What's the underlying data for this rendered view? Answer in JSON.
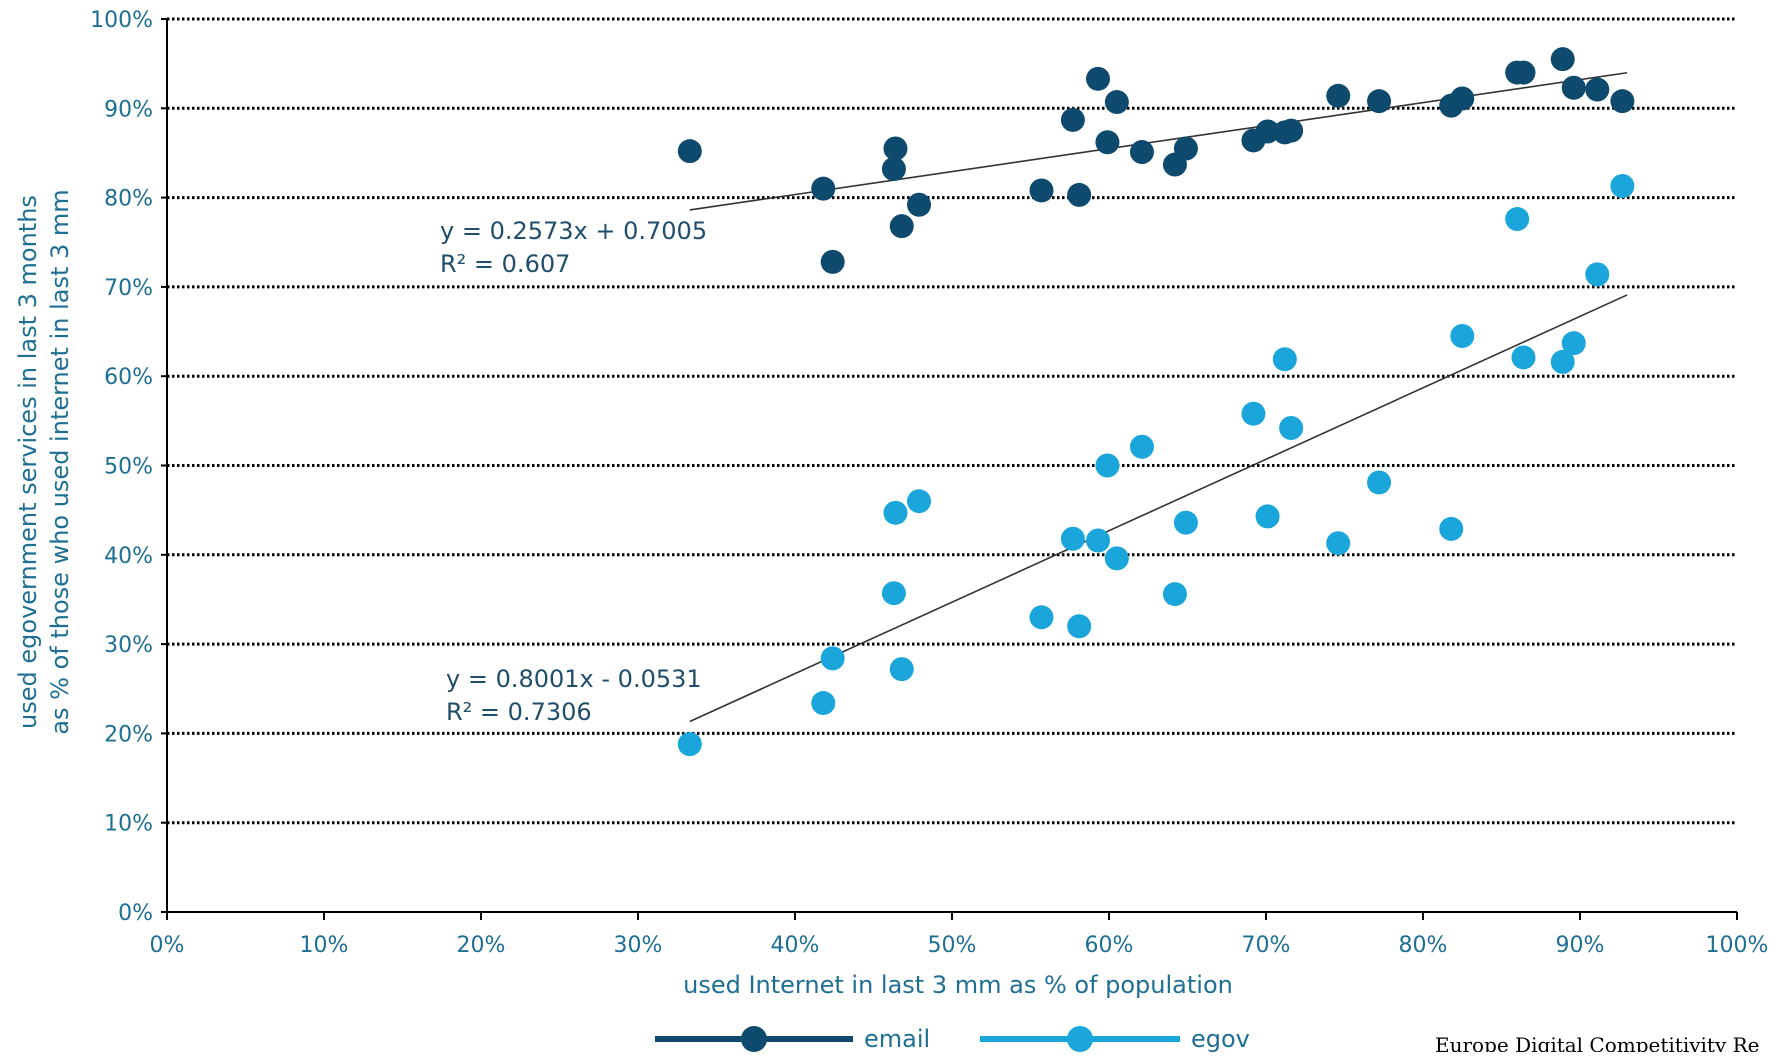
{
  "chart_data": {
    "type": "scatter",
    "xlabel": "used Internet in last 3 mm as % of population",
    "ylabel_lines": [
      "used egovernment services in last 3 months",
      "as % of those who used internet in last 3 mm"
    ],
    "xlim": [
      0,
      1
    ],
    "ylim": [
      0,
      1
    ],
    "x_ticks": [
      0,
      0.1,
      0.2,
      0.3,
      0.4,
      0.5,
      0.6,
      0.7,
      0.8,
      0.9,
      1.0
    ],
    "x_tick_labels": [
      "0%",
      "10%",
      "20%",
      "30%",
      "40%",
      "50%",
      "60%",
      "70%",
      "80%",
      "90%",
      "100%"
    ],
    "y_ticks": [
      0,
      0.1,
      0.2,
      0.3,
      0.4,
      0.5,
      0.6,
      0.7,
      0.8,
      0.9,
      1.0
    ],
    "y_tick_labels": [
      "0%",
      "10%",
      "20%",
      "30%",
      "40%",
      "50%",
      "60%",
      "70%",
      "80%",
      "90%",
      "100%"
    ],
    "grid": "horizontal dotted",
    "legend_position": "bottom",
    "series": [
      {
        "name": "email",
        "color": "#0d4a6e",
        "x": [
          0.333,
          0.418,
          0.424,
          0.463,
          0.464,
          0.468,
          0.479,
          0.557,
          0.577,
          0.581,
          0.593,
          0.599,
          0.605,
          0.621,
          0.642,
          0.649,
          0.692,
          0.701,
          0.712,
          0.716,
          0.746,
          0.772,
          0.818,
          0.825,
          0.86,
          0.864,
          0.889,
          0.896,
          0.911,
          0.927
        ],
        "y": [
          0.852,
          0.81,
          0.728,
          0.832,
          0.855,
          0.768,
          0.792,
          0.808,
          0.887,
          0.803,
          0.933,
          0.862,
          0.907,
          0.851,
          0.837,
          0.855,
          0.864,
          0.874,
          0.873,
          0.875,
          0.914,
          0.908,
          0.903,
          0.911,
          0.94,
          0.94,
          0.955,
          0.923,
          0.921,
          0.908
        ],
        "trendline": {
          "slope": 0.2573,
          "intercept": 0.7005,
          "x_range": [
            0.333,
            0.93
          ]
        },
        "equation_text": "y = 0.2573x + 0.7005",
        "r2_text": "R² = 0.607"
      },
      {
        "name": "egov",
        "color": "#1aa6db",
        "x": [
          0.333,
          0.418,
          0.424,
          0.463,
          0.464,
          0.468,
          0.479,
          0.557,
          0.577,
          0.581,
          0.593,
          0.599,
          0.605,
          0.621,
          0.642,
          0.649,
          0.692,
          0.701,
          0.712,
          0.716,
          0.746,
          0.772,
          0.818,
          0.825,
          0.86,
          0.864,
          0.889,
          0.896,
          0.911,
          0.927
        ],
        "y": [
          0.188,
          0.234,
          0.284,
          0.357,
          0.447,
          0.272,
          0.46,
          0.33,
          0.418,
          0.32,
          0.416,
          0.5,
          0.396,
          0.521,
          0.356,
          0.436,
          0.558,
          0.443,
          0.619,
          0.542,
          0.413,
          0.481,
          0.429,
          0.645,
          0.776,
          0.621,
          0.616,
          0.637,
          0.714,
          0.813
        ],
        "trendline": {
          "slope": 0.8001,
          "intercept": -0.0531,
          "x_range": [
            0.333,
            0.93
          ]
        },
        "equation_text": "y = 0.8001x - 0.0531",
        "r2_text": "R² = 0.7306"
      }
    ],
    "footer_text": "Europe Digital Competitivity Re"
  },
  "colors": {
    "axis": "#000000",
    "grid": "#000000",
    "trendline": "#333333"
  }
}
